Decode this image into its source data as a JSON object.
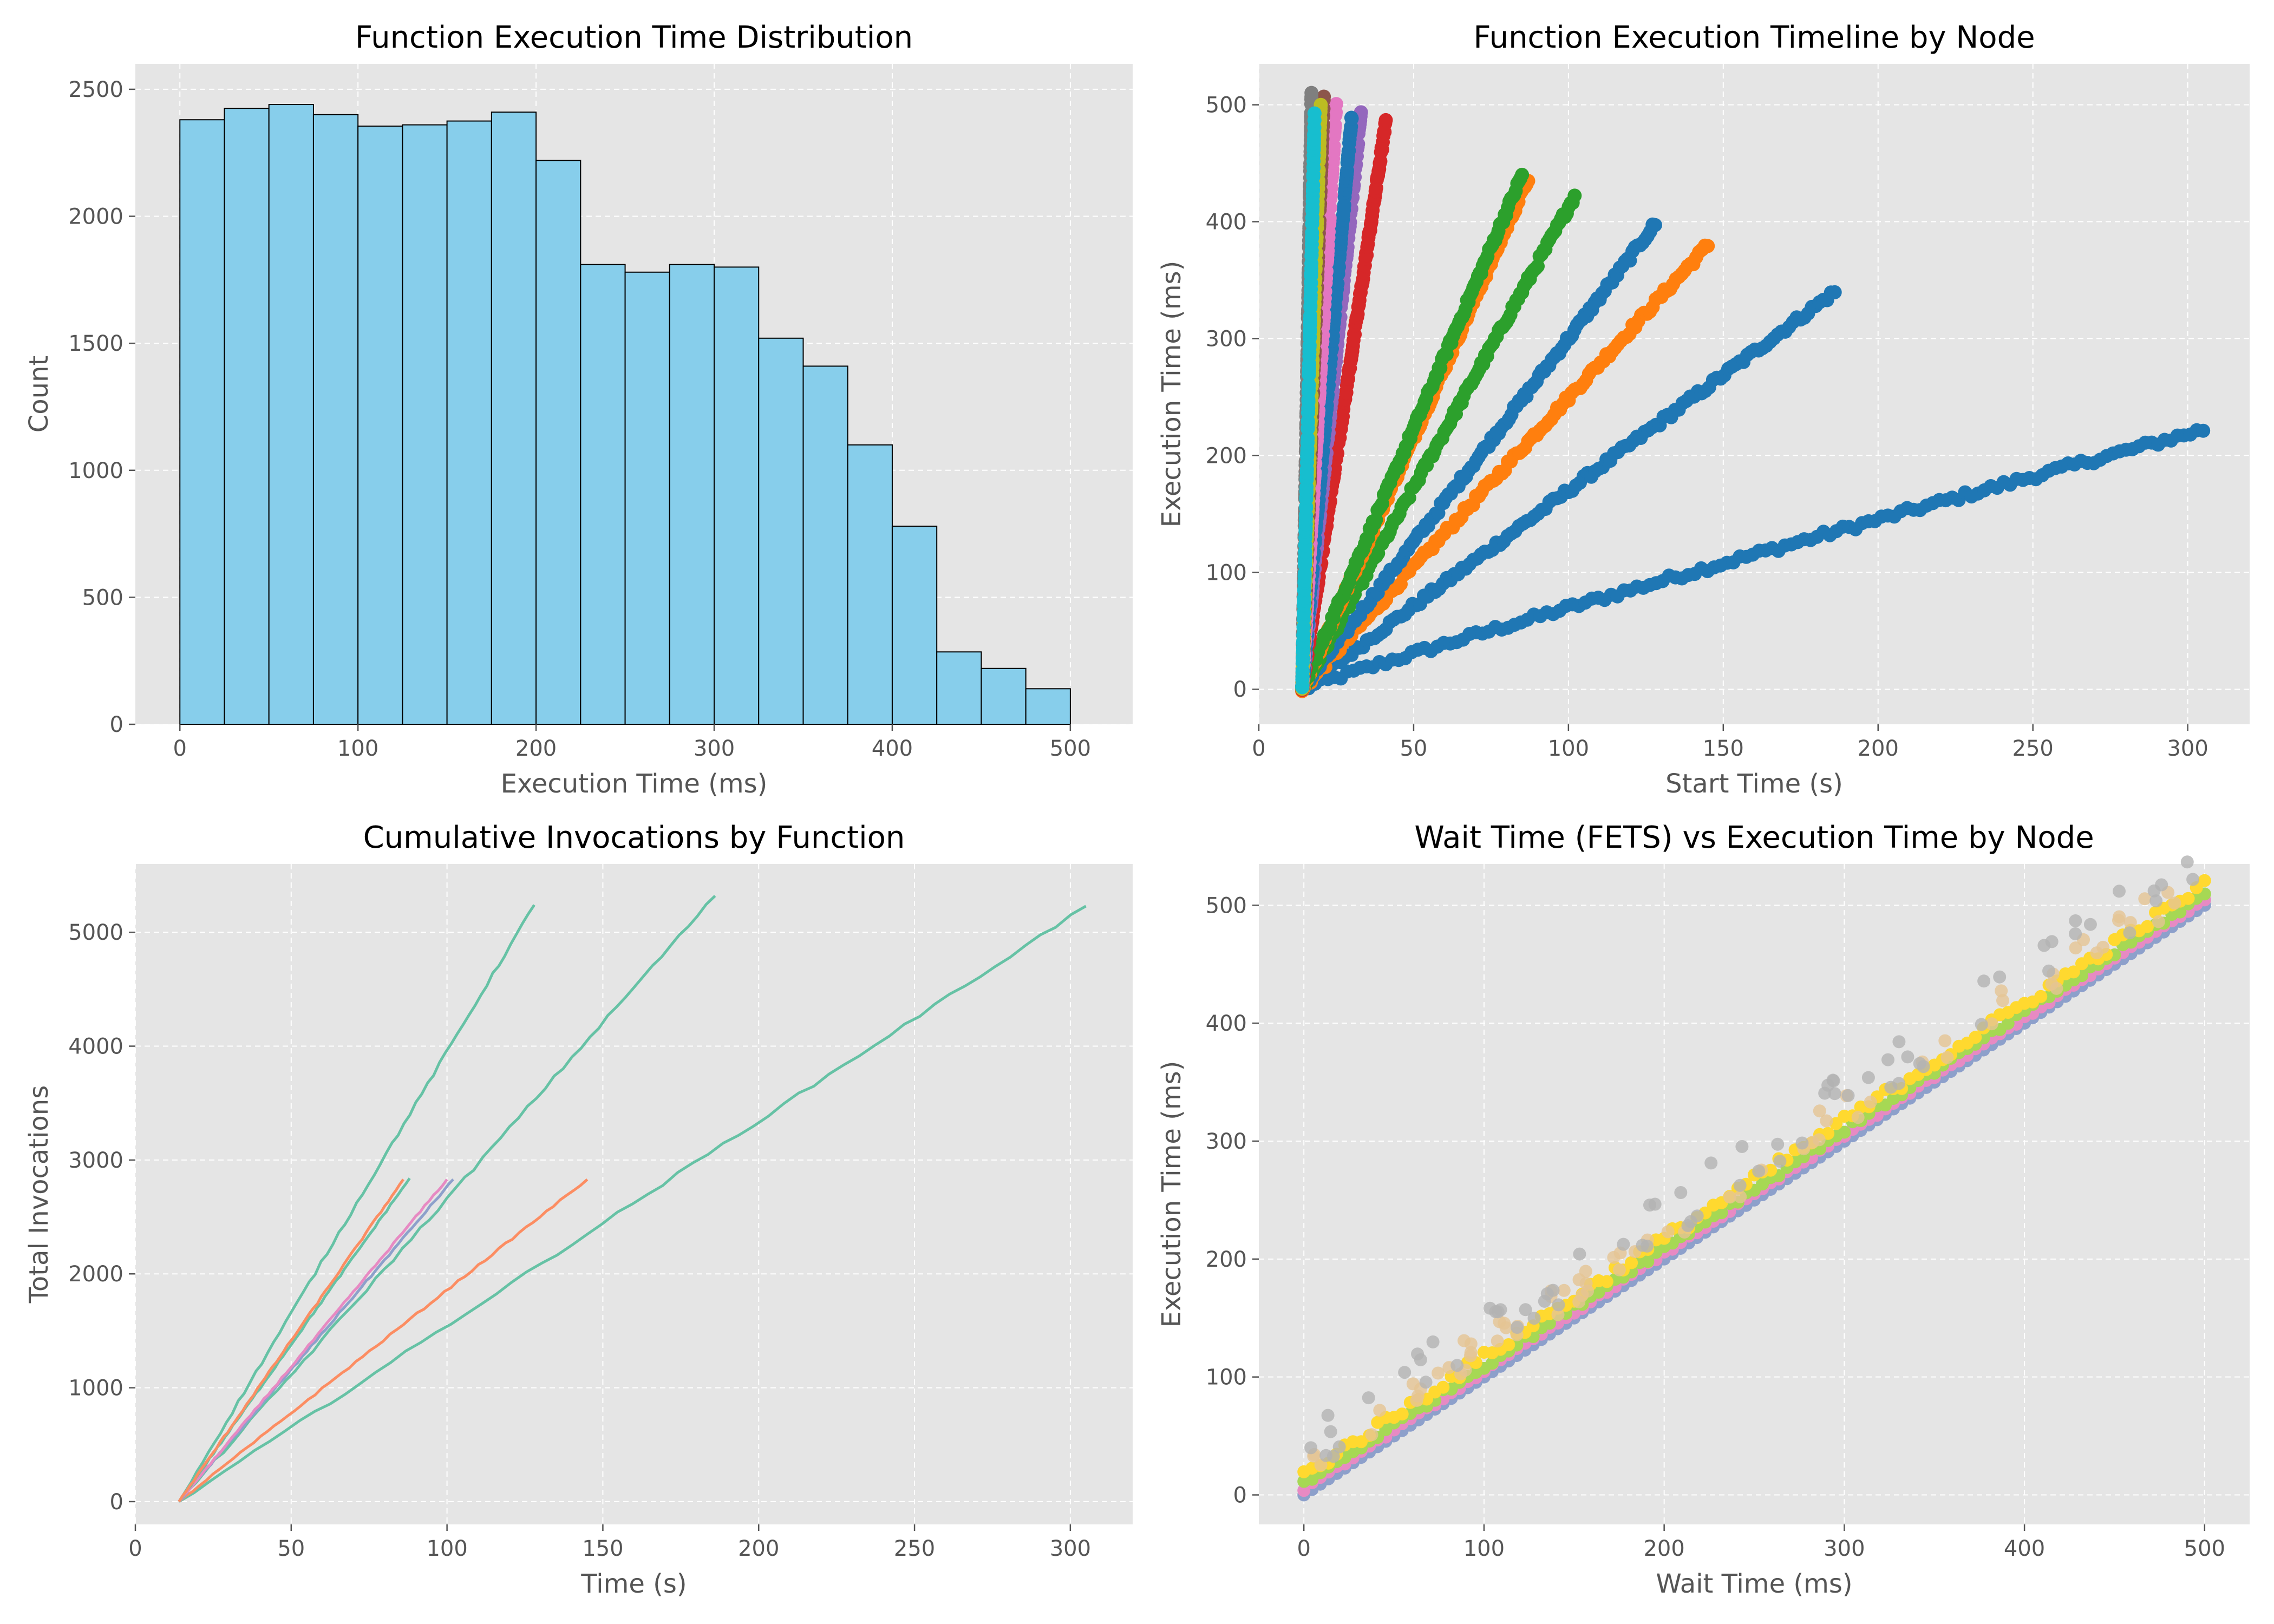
{
  "chart_data": [
    {
      "type": "bar",
      "title": "Function Execution Time Distribution",
      "xlabel": "Execution Time (ms)",
      "ylabel": "Count",
      "xlim": [
        -25,
        535
      ],
      "ylim": [
        0,
        2600
      ],
      "xticks": [
        0,
        100,
        200,
        300,
        400,
        500
      ],
      "yticks": [
        0,
        500,
        1000,
        1500,
        2000,
        2500
      ],
      "grid": true,
      "bar_color": "#87CEEB",
      "edge_color": "#000000",
      "bin_edges": [
        0,
        25,
        50,
        75,
        100,
        125,
        150,
        175,
        200,
        225,
        250,
        275,
        300,
        325,
        350,
        375,
        400,
        425,
        450,
        475,
        500
      ],
      "values": [
        2380,
        2425,
        2440,
        2400,
        2355,
        2360,
        2375,
        2410,
        2220,
        1810,
        1780,
        1810,
        1800,
        1520,
        1410,
        1100,
        780,
        285,
        220,
        140
      ]
    },
    {
      "type": "scatter",
      "title": "Function Execution Timeline by Node",
      "xlabel": "Start Time (s)",
      "ylabel": "Execution Time (ms)",
      "xlim": [
        0,
        320
      ],
      "ylim": [
        -30,
        535
      ],
      "xticks": [
        0,
        50,
        100,
        150,
        200,
        250,
        300
      ],
      "yticks": [
        0,
        100,
        200,
        300,
        400,
        500
      ],
      "grid": true,
      "series": [
        {
          "color": "#1f77b4",
          "start": [
            14,
            0
          ],
          "end": [
            305,
            222
          ]
        },
        {
          "color": "#1f77b4",
          "start": [
            14,
            0
          ],
          "end": [
            186,
            340
          ]
        },
        {
          "color": "#ff7f0e",
          "start": [
            14,
            0
          ],
          "end": [
            145,
            380
          ]
        },
        {
          "color": "#1f77b4",
          "start": [
            14,
            0
          ],
          "end": [
            128,
            398
          ]
        },
        {
          "color": "#2ca02c",
          "start": [
            14,
            0
          ],
          "end": [
            102,
            422
          ]
        },
        {
          "color": "#ff7f0e",
          "start": [
            14,
            0
          ],
          "end": [
            87,
            437
          ]
        },
        {
          "color": "#2ca02c",
          "start": [
            14,
            0
          ],
          "end": [
            85,
            440
          ]
        },
        {
          "color": "#d62728",
          "start": [
            14,
            0
          ],
          "end": [
            41,
            485
          ]
        },
        {
          "color": "#9467bd",
          "start": [
            14,
            0
          ],
          "end": [
            33,
            494
          ]
        },
        {
          "color": "#1f77b4",
          "start": [
            14,
            0
          ],
          "end": [
            30,
            490
          ]
        },
        {
          "color": "#e377c2",
          "start": [
            14,
            0
          ],
          "end": [
            25,
            503
          ]
        },
        {
          "color": "#8c564b",
          "start": [
            14,
            0
          ],
          "end": [
            21,
            505
          ]
        },
        {
          "color": "#7f7f7f",
          "start": [
            14,
            0
          ],
          "end": [
            17,
            510
          ]
        },
        {
          "color": "#bcbd22",
          "start": [
            14,
            0
          ],
          "end": [
            20,
            500
          ]
        },
        {
          "color": "#17becf",
          "start": [
            14,
            0
          ],
          "end": [
            18,
            490
          ]
        }
      ]
    },
    {
      "type": "line",
      "title": "Cumulative Invocations by Function",
      "xlabel": "Time (s)",
      "ylabel": "Total Invocations",
      "xlim": [
        0,
        320
      ],
      "ylim": [
        -200,
        5600
      ],
      "xticks": [
        0,
        50,
        100,
        150,
        200,
        250,
        300
      ],
      "yticks": [
        0,
        1000,
        2000,
        3000,
        4000,
        5000
      ],
      "grid": true,
      "series": [
        {
          "color": "#66c2a5",
          "x": [
            14,
            305
          ],
          "y": [
            0,
            5230
          ]
        },
        {
          "color": "#66c2a5",
          "x": [
            14,
            186
          ],
          "y": [
            0,
            5320
          ]
        },
        {
          "color": "#66c2a5",
          "x": [
            14,
            128
          ],
          "y": [
            0,
            5240
          ]
        },
        {
          "color": "#fc8d62",
          "x": [
            14,
            145
          ],
          "y": [
            0,
            2830
          ]
        },
        {
          "color": "#8da0cb",
          "x": [
            14,
            102
          ],
          "y": [
            0,
            2830
          ]
        },
        {
          "color": "#e78ac3",
          "x": [
            14,
            100
          ],
          "y": [
            0,
            2830
          ]
        },
        {
          "color": "#66c2a5",
          "x": [
            14,
            88
          ],
          "y": [
            0,
            2840
          ]
        },
        {
          "color": "#fc8d62",
          "x": [
            14,
            86
          ],
          "y": [
            0,
            2830
          ]
        }
      ]
    },
    {
      "type": "scatter",
      "title": "Wait Time (FETS) vs Execution Time by Node",
      "xlabel": "Wait Time (ms)",
      "ylabel": "Execution Time (ms)",
      "xlim": [
        -25,
        525
      ],
      "ylim": [
        -25,
        535
      ],
      "xticks": [
        0,
        100,
        200,
        300,
        400,
        500
      ],
      "yticks": [
        0,
        100,
        200,
        300,
        400,
        500
      ],
      "grid": true,
      "series": [
        {
          "color": "#8da0cb",
          "offset": 0
        },
        {
          "color": "#e78ac3",
          "offset": 5
        },
        {
          "color": "#a6d854",
          "offset": 10
        },
        {
          "color": "#ffd92f",
          "offset": 18
        },
        {
          "color": "#e5c494",
          "offset": 35
        },
        {
          "color": "#b3b3b3",
          "offset": 50
        }
      ]
    }
  ]
}
